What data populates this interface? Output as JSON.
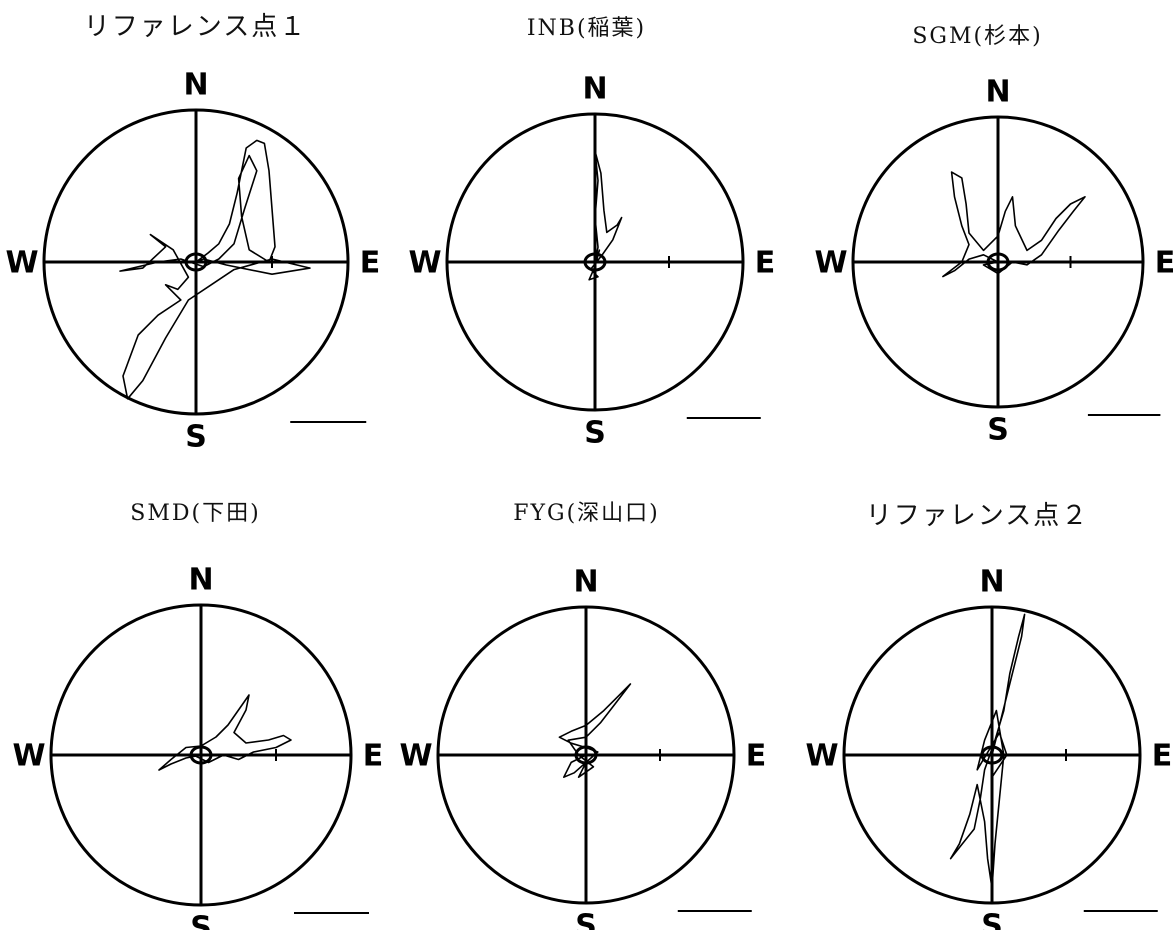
{
  "panels": [
    {
      "id": "ref1",
      "title": "リファレンス点１",
      "labels": {
        "n": "N",
        "s": "S",
        "e": "E",
        "w": "W"
      },
      "trace": [
        [
          0,
          0
        ],
        [
          0.08,
          0.06
        ],
        [
          0.15,
          0.12
        ],
        [
          0.22,
          0.25
        ],
        [
          0.27,
          0.45
        ],
        [
          0.3,
          0.6
        ],
        [
          0.33,
          0.75
        ],
        [
          0.4,
          0.8
        ],
        [
          0.45,
          0.78
        ],
        [
          0.48,
          0.6
        ],
        [
          0.5,
          0.35
        ],
        [
          0.52,
          0.1
        ],
        [
          0.48,
          0.0
        ],
        [
          0.35,
          0.08
        ],
        [
          0.3,
          0.3
        ],
        [
          0.28,
          0.55
        ],
        [
          0.35,
          0.7
        ],
        [
          0.4,
          0.6
        ],
        [
          0.32,
          0.35
        ],
        [
          0.25,
          0.12
        ],
        [
          0.15,
          0.02
        ],
        [
          0.05,
          -0.03
        ],
        [
          -0.1,
          0.02
        ],
        [
          -0.25,
          0.0
        ],
        [
          -0.5,
          -0.06
        ],
        [
          -0.35,
          -0.04
        ],
        [
          -0.2,
          0.1
        ],
        [
          -0.3,
          0.18
        ],
        [
          -0.15,
          0.08
        ],
        [
          -0.05,
          -0.1
        ],
        [
          -0.12,
          -0.18
        ],
        [
          -0.2,
          -0.15
        ],
        [
          -0.1,
          -0.25
        ],
        [
          -0.25,
          -0.35
        ],
        [
          -0.38,
          -0.48
        ],
        [
          -0.48,
          -0.75
        ],
        [
          -0.45,
          -0.9
        ],
        [
          -0.35,
          -0.78
        ],
        [
          -0.2,
          -0.5
        ],
        [
          -0.05,
          -0.25
        ],
        [
          0.1,
          -0.15
        ],
        [
          0.25,
          -0.05
        ],
        [
          0.5,
          0.02
        ],
        [
          0.75,
          -0.04
        ],
        [
          0.5,
          -0.08
        ],
        [
          0.2,
          -0.02
        ],
        [
          0.05,
          0.02
        ],
        [
          0,
          0
        ]
      ]
    },
    {
      "id": "inb",
      "title": "INB(稲葉)",
      "labels": {
        "n": "N",
        "s": "S",
        "e": "E",
        "w": "W"
      },
      "trace": [
        [
          0,
          0
        ],
        [
          0.02,
          0.1
        ],
        [
          0.0,
          0.3
        ],
        [
          0.02,
          0.55
        ],
        [
          0.0,
          0.75
        ],
        [
          0.04,
          0.6
        ],
        [
          0.06,
          0.35
        ],
        [
          0.08,
          0.2
        ],
        [
          0.15,
          0.25
        ],
        [
          0.18,
          0.3
        ],
        [
          0.12,
          0.15
        ],
        [
          0.05,
          0.05
        ],
        [
          -0.03,
          -0.05
        ],
        [
          0.02,
          -0.1
        ],
        [
          -0.04,
          -0.12
        ],
        [
          0.0,
          -0.03
        ],
        [
          0.03,
          0.08
        ],
        [
          0.0,
          0.0
        ]
      ]
    },
    {
      "id": "sgm",
      "title": "SGM(杉本)",
      "labels": {
        "n": "N",
        "s": "S",
        "e": "E",
        "w": "W"
      },
      "trace": [
        [
          0,
          0
        ],
        [
          -0.1,
          0.05
        ],
        [
          -0.2,
          0.02
        ],
        [
          -0.3,
          -0.06
        ],
        [
          -0.38,
          -0.1
        ],
        [
          -0.25,
          0.0
        ],
        [
          -0.2,
          0.12
        ],
        [
          -0.25,
          0.25
        ],
        [
          -0.3,
          0.45
        ],
        [
          -0.32,
          0.62
        ],
        [
          -0.25,
          0.58
        ],
        [
          -0.22,
          0.4
        ],
        [
          -0.2,
          0.2
        ],
        [
          -0.1,
          0.08
        ],
        [
          0.0,
          0.18
        ],
        [
          0.05,
          0.35
        ],
        [
          0.1,
          0.45
        ],
        [
          0.12,
          0.25
        ],
        [
          0.2,
          0.08
        ],
        [
          0.3,
          0.15
        ],
        [
          0.4,
          0.3
        ],
        [
          0.5,
          0.4
        ],
        [
          0.6,
          0.45
        ],
        [
          0.52,
          0.35
        ],
        [
          0.42,
          0.22
        ],
        [
          0.3,
          0.05
        ],
        [
          0.2,
          -0.02
        ],
        [
          0.1,
          0.0
        ],
        [
          0.0,
          -0.08
        ],
        [
          -0.1,
          -0.02
        ],
        [
          0.0,
          0.0
        ]
      ]
    },
    {
      "id": "smd",
      "title": "SMD(下田)",
      "labels": {
        "n": "N",
        "s": "S",
        "e": "E",
        "w": "W"
      },
      "trace": [
        [
          0,
          0
        ],
        [
          -0.1,
          -0.02
        ],
        [
          -0.2,
          -0.06
        ],
        [
          -0.28,
          -0.1
        ],
        [
          -0.2,
          -0.03
        ],
        [
          -0.1,
          0.05
        ],
        [
          0.0,
          0.06
        ],
        [
          0.1,
          0.12
        ],
        [
          0.18,
          0.2
        ],
        [
          0.25,
          0.3
        ],
        [
          0.32,
          0.4
        ],
        [
          0.3,
          0.3
        ],
        [
          0.22,
          0.15
        ],
        [
          0.3,
          0.08
        ],
        [
          0.45,
          0.1
        ],
        [
          0.55,
          0.13
        ],
        [
          0.6,
          0.1
        ],
        [
          0.5,
          0.05
        ],
        [
          0.35,
          0.02
        ],
        [
          0.25,
          -0.03
        ],
        [
          0.15,
          0.0
        ],
        [
          0.05,
          -0.05
        ],
        [
          -0.05,
          0.0
        ],
        [
          0,
          0
        ]
      ]
    },
    {
      "id": "fyg",
      "title": "FYG(深山口)",
      "labels": {
        "n": "N",
        "s": "S",
        "e": "E",
        "w": "W"
      },
      "trace": [
        [
          0,
          0
        ],
        [
          -0.1,
          -0.05
        ],
        [
          -0.15,
          -0.15
        ],
        [
          -0.08,
          -0.12
        ],
        [
          0.0,
          -0.05
        ],
        [
          0.08,
          0.02
        ],
        [
          0.0,
          0.05
        ],
        [
          -0.1,
          0.08
        ],
        [
          -0.18,
          0.12
        ],
        [
          -0.1,
          0.16
        ],
        [
          0.0,
          0.2
        ],
        [
          0.12,
          0.3
        ],
        [
          0.22,
          0.4
        ],
        [
          0.3,
          0.48
        ],
        [
          0.2,
          0.35
        ],
        [
          0.1,
          0.22
        ],
        [
          0.0,
          0.12
        ],
        [
          -0.12,
          0.1
        ],
        [
          -0.05,
          0.0
        ],
        [
          0.05,
          -0.08
        ],
        [
          -0.05,
          -0.15
        ],
        [
          0.0,
          -0.05
        ],
        [
          0,
          0
        ]
      ]
    },
    {
      "id": "ref2",
      "title": "リファレンス点２",
      "labels": {
        "n": "N",
        "s": "S",
        "e": "E",
        "w": "W"
      },
      "trace": [
        [
          0,
          0
        ],
        [
          0.05,
          0.2
        ],
        [
          0.1,
          0.4
        ],
        [
          0.15,
          0.6
        ],
        [
          0.2,
          0.8
        ],
        [
          0.22,
          0.95
        ],
        [
          0.18,
          0.8
        ],
        [
          0.12,
          0.55
        ],
        [
          0.08,
          0.3
        ],
        [
          0.02,
          0.1
        ],
        [
          -0.05,
          -0.1
        ],
        [
          -0.08,
          -0.3
        ],
        [
          -0.12,
          -0.5
        ],
        [
          -0.2,
          -0.6
        ],
        [
          -0.28,
          -0.7
        ],
        [
          -0.22,
          -0.6
        ],
        [
          -0.15,
          -0.4
        ],
        [
          -0.1,
          -0.2
        ],
        [
          -0.05,
          -0.45
        ],
        [
          -0.03,
          -0.7
        ],
        [
          0.0,
          -0.9
        ],
        [
          0.02,
          -0.6
        ],
        [
          0.05,
          -0.3
        ],
        [
          0.08,
          0.0
        ],
        [
          0.03,
          0.3
        ],
        [
          -0.05,
          0.1
        ],
        [
          -0.1,
          -0.1
        ],
        [
          0.05,
          0.15
        ],
        [
          0.1,
          0.0
        ],
        [
          0.0,
          -0.15
        ],
        [
          0,
          0
        ]
      ]
    }
  ]
}
